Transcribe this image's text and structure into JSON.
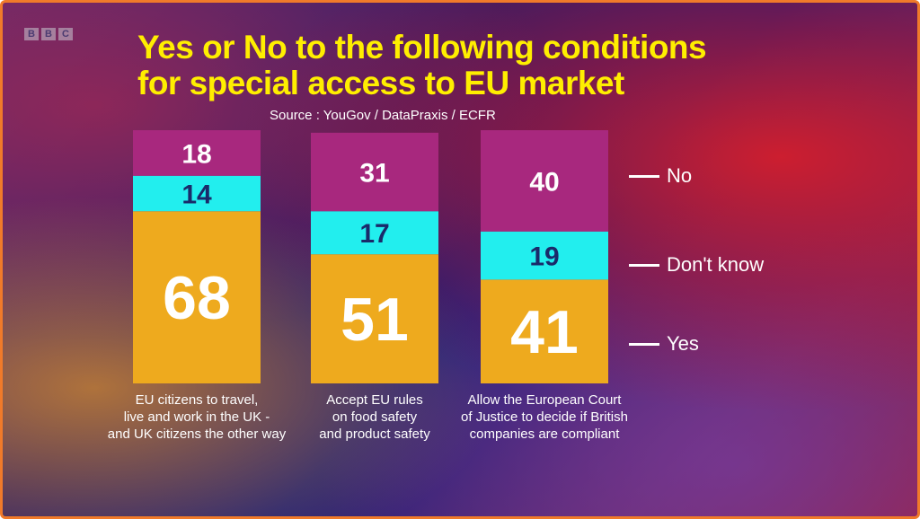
{
  "logo": [
    "B",
    "B",
    "C"
  ],
  "chart_data": {
    "type": "bar",
    "stacked": true,
    "title": "Yes or No to the following conditions for special access to EU market",
    "title_lines": [
      "Yes or No to the following conditions",
      "for special access to EU market"
    ],
    "source": "Source : YouGov / DataPraxis / ECFR",
    "categories": [
      "EU citizens to travel, live and work in the UK - and UK citizens the other way",
      "Accept EU rules on food safety and product safety",
      "Allow the European Court of Justice to decide if British companies are compliant"
    ],
    "category_lines": [
      [
        "EU citizens to travel,",
        "live and work in the UK -",
        "and UK citizens the other way"
      ],
      [
        "Accept EU rules",
        "on food safety",
        "and product safety"
      ],
      [
        "Allow the European Court",
        "of Justice to decide if British",
        "companies are compliant"
      ]
    ],
    "series": [
      {
        "name": "Yes",
        "color": "#eeaa1e",
        "values": [
          68,
          51,
          41
        ]
      },
      {
        "name": "Don't know",
        "color": "#22eeee",
        "values": [
          14,
          17,
          19
        ]
      },
      {
        "name": "No",
        "color": "#a8287e",
        "values": [
          18,
          31,
          40
        ]
      }
    ],
    "ylim": [
      0,
      100
    ],
    "legend_placement": "right"
  }
}
